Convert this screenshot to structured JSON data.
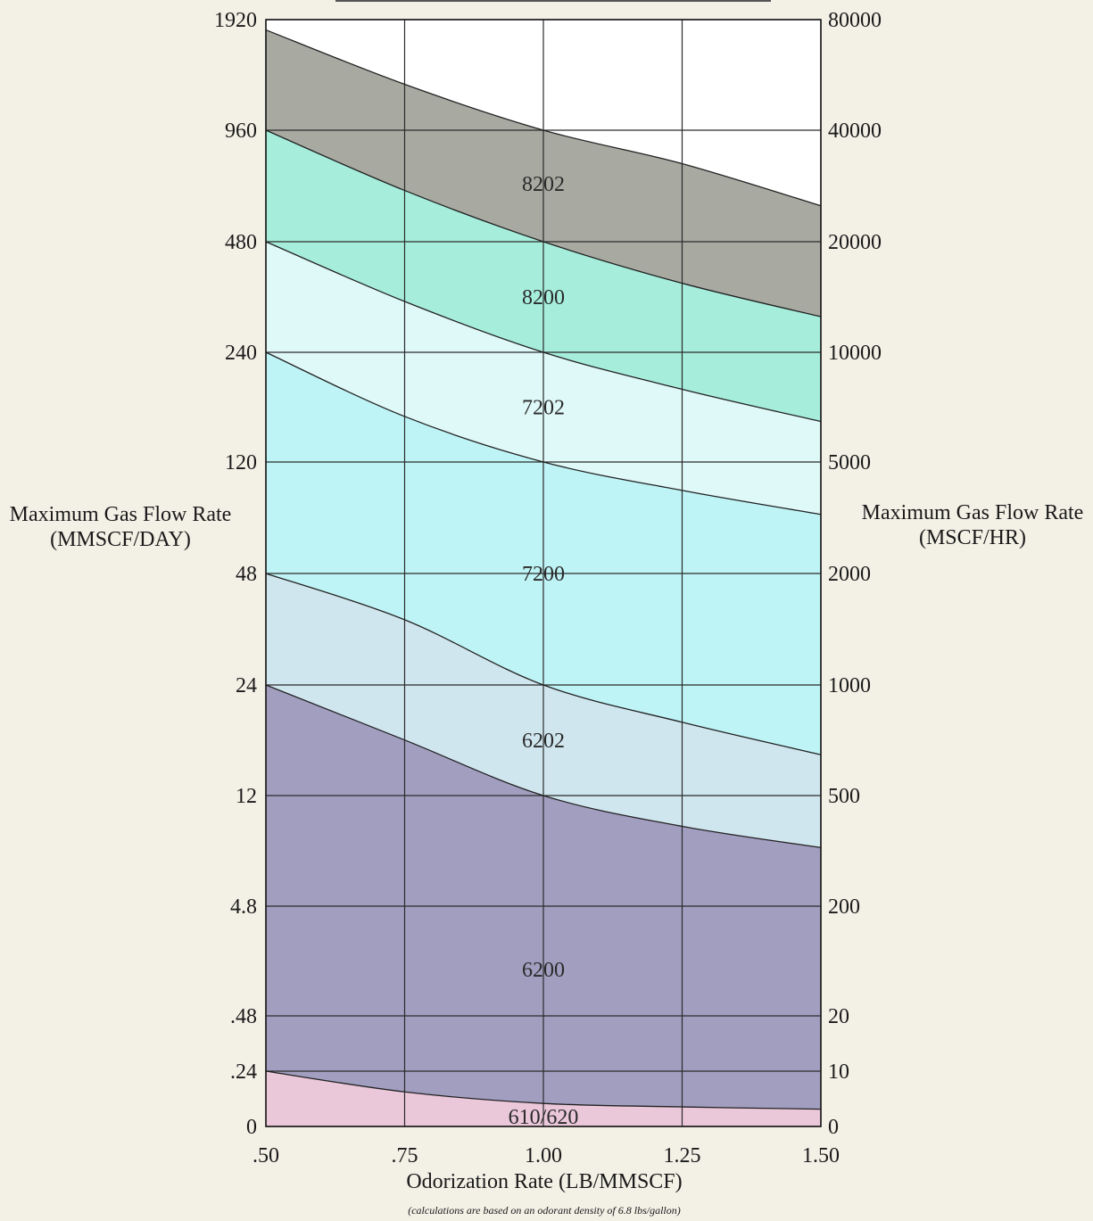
{
  "chart_data": {
    "type": "area",
    "title": "",
    "xlabel": "Odorization Rate (LB/MMSCF)",
    "ylabel_left": "Maximum Gas Flow Rate (MMSCF/DAY)",
    "ylabel_right": "Maximum Gas Flow Rate (MSCF/HR)",
    "footnote": "(calculations are based on an odorant density of 6.8 lbs/gallon)",
    "x_ticks": [
      ".50",
      ".75",
      "1.00",
      "1.25",
      "1.50"
    ],
    "x_values": [
      0.5,
      0.75,
      1.0,
      1.25,
      1.5
    ],
    "xlim": [
      0.5,
      1.5
    ],
    "y_left_ticks": [
      "1920",
      "960",
      "480",
      "240",
      "120",
      "48",
      "24",
      "12",
      "4.8",
      ".48",
      ".24",
      "0"
    ],
    "y_right_ticks": [
      "80000",
      "40000",
      "20000",
      "10000",
      "5000",
      "2000",
      "1000",
      "500",
      "200",
      "20",
      "10",
      "0"
    ],
    "grid": true,
    "series": [
      {
        "name": "8202",
        "color": "#a8aaa2",
        "upper": [
          1800,
          1280,
          960,
          780,
          600
        ],
        "lower": [
          960,
          660,
          480,
          370,
          300
        ]
      },
      {
        "name": "8200",
        "color": "#a6eedb",
        "upper": [
          960,
          660,
          480,
          370,
          300
        ],
        "lower": [
          480,
          330,
          240,
          190,
          155
        ]
      },
      {
        "name": "7202",
        "color": "#dff8f8",
        "upper": [
          480,
          330,
          240,
          190,
          155
        ],
        "lower": [
          240,
          160,
          120,
          95,
          78
        ]
      },
      {
        "name": "7200",
        "color": "#bff4f6",
        "upper": [
          240,
          160,
          120,
          95,
          78
        ],
        "lower": [
          48,
          36,
          24,
          19,
          15.5
        ]
      },
      {
        "name": "6202",
        "color": "#d0e6ef",
        "upper": [
          48,
          36,
          24,
          19,
          15.5
        ],
        "lower": [
          24,
          17,
          12,
          9.3,
          7.8
        ]
      },
      {
        "name": "6200",
        "color": "#a29ec0",
        "upper": [
          24,
          17,
          12,
          9.3,
          7.8
        ],
        "lower": [
          0.24,
          0.15,
          0.1,
          0.085,
          0.075
        ]
      },
      {
        "name": "610/620",
        "color": "#ebc7da",
        "upper": [
          0.24,
          0.15,
          0.1,
          0.085,
          0.075
        ],
        "lower": [
          0,
          0,
          0,
          0,
          0
        ]
      }
    ]
  }
}
